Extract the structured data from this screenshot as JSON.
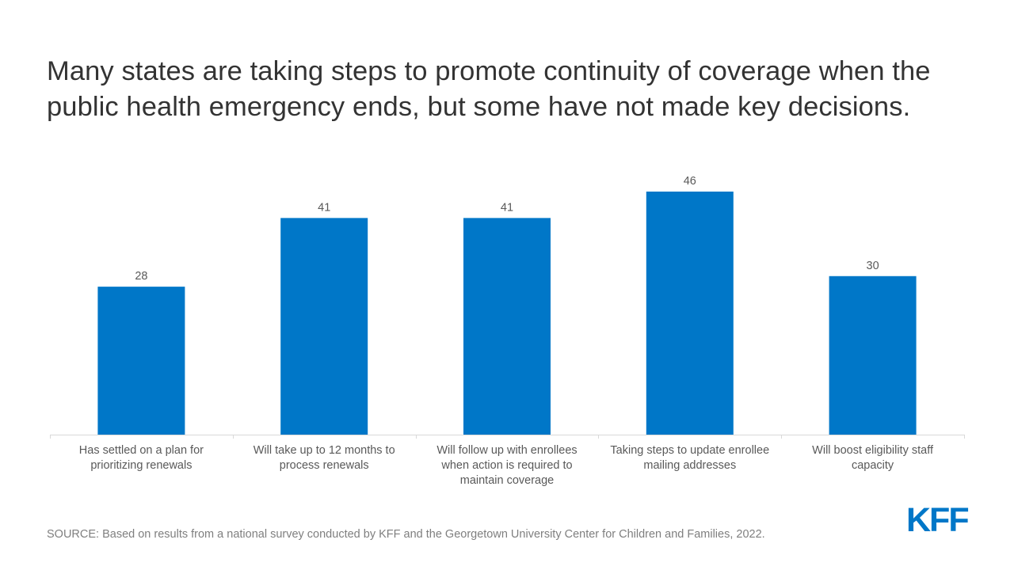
{
  "title": "Many states are taking steps to promote continuity of coverage when the public health emergency ends, but some have not made key decisions.",
  "source": "SOURCE: Based on results from a national survey conducted by KFF and the Georgetown University Center for Children and Families, 2022.",
  "logo_text": "KFF",
  "colors": {
    "bar": "#0077c8",
    "axis": "#d9d9d9",
    "text": "#595959",
    "title": "#333333"
  },
  "chart_data": {
    "type": "bar",
    "title": "Many states are taking steps to promote continuity of coverage when the public health emergency ends, but some have not made key decisions.",
    "xlabel": "",
    "ylabel": "",
    "ylim": [
      0,
      46
    ],
    "grid": false,
    "categories": [
      [
        "Has settled on a plan for",
        "prioritizing renewals"
      ],
      [
        "Will take up to 12 months to",
        "process renewals"
      ],
      [
        "Will follow up with enrollees",
        "when action is required to",
        "maintain coverage"
      ],
      [
        "Taking steps to update enrollee",
        "mailing addresses"
      ],
      [
        "Will boost eligibility staff",
        "capacity"
      ]
    ],
    "values": [
      28,
      41,
      41,
      46,
      30
    ]
  }
}
